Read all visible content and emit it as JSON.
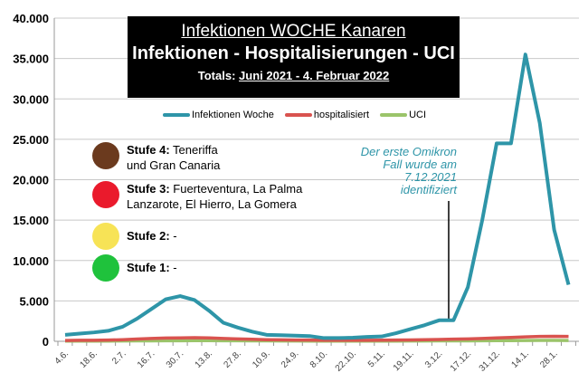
{
  "title": {
    "line1": "Infektionen WOCHE Kanaren",
    "line2": "Infektionen - Hospitalisierungen - UCI",
    "totals_label": "Totals:",
    "totals_range": "Juni 2021 - 4. Februar 2022"
  },
  "stufen": [
    {
      "label": "Stufe 4:",
      "text1": " Teneriffa",
      "text2": "und Gran Canaria",
      "color": "#6b3a1e"
    },
    {
      "label": "Stufe 3:",
      "text1": " Fuerteventura, La Palma",
      "text2": "Lanzarote, El Hierro, La Gomera",
      "color": "#ea1a2c"
    },
    {
      "label": "Stufe 2:",
      "text1": " -",
      "text2": "",
      "color": "#f7e356"
    },
    {
      "label": "Stufe 1:",
      "text1": " -",
      "text2": "",
      "color": "#1fc23c"
    }
  ],
  "annotation": {
    "line1": "Der erste Omikron",
    "line2": "Fall wurde am",
    "line3": "7.12.2021",
    "line4": "identifiziert"
  },
  "chart_data": {
    "type": "line",
    "title": "Infektionen WOCHE Kanaren",
    "ylim": [
      0,
      40000
    ],
    "yticks": [
      "0",
      "5.000",
      "10.000",
      "15.000",
      "20.000",
      "25.000",
      "30.000",
      "35.000",
      "40.000"
    ],
    "xtick_labels": [
      "4.6.",
      "18.6.",
      "2.7.",
      "16.7.",
      "30.7.",
      "13.8.",
      "27.8.",
      "10.9.",
      "24.9.",
      "8.10.",
      "22.10.",
      "5.11.",
      "19.11.",
      "3.12.",
      "17.12.",
      "31.12.",
      "14.1.",
      "28.1."
    ],
    "legend_position": "top-center",
    "series": [
      {
        "name": "Infektionen Woche",
        "color": "#2e95a8",
        "values": [
          800,
          950,
          1100,
          1300,
          1800,
          2800,
          4000,
          5200,
          5600,
          5100,
          3800,
          2300,
          1700,
          1200,
          800,
          750,
          700,
          650,
          400,
          400,
          450,
          550,
          600,
          1000,
          1500,
          2000,
          2600,
          2600,
          6700,
          15000,
          24500,
          24500,
          35500,
          27000,
          13800,
          7000
        ]
      },
      {
        "name": "hospitalisiert",
        "color": "#d9534f",
        "values": [
          100,
          120,
          130,
          150,
          200,
          280,
          350,
          400,
          420,
          450,
          420,
          350,
          300,
          250,
          200,
          180,
          160,
          150,
          130,
          120,
          120,
          130,
          140,
          150,
          170,
          200,
          230,
          260,
          300,
          350,
          420,
          480,
          550,
          600,
          620,
          600
        ]
      },
      {
        "name": "UCI",
        "color": "#9bc46a",
        "values": [
          30,
          30,
          30,
          35,
          40,
          50,
          60,
          70,
          75,
          80,
          80,
          75,
          70,
          60,
          50,
          45,
          40,
          35,
          30,
          30,
          30,
          30,
          30,
          35,
          40,
          45,
          50,
          55,
          60,
          70,
          80,
          90,
          100,
          110,
          110,
          100
        ]
      }
    ]
  }
}
